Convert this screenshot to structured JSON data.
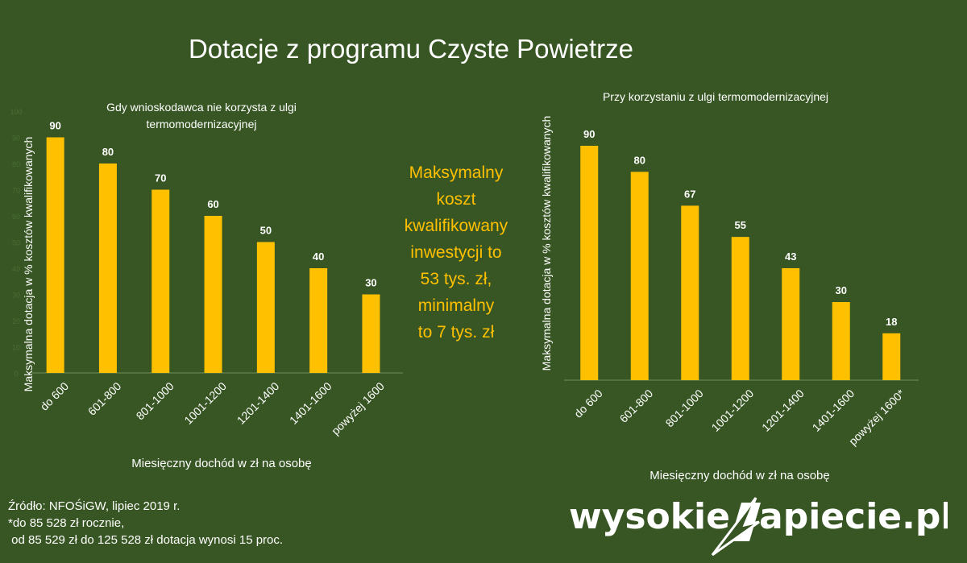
{
  "title": "Dotacje z programu Czyste Powietrze",
  "note": {
    "lines": [
      "Maksymalny",
      "koszt",
      "kwalifikowany",
      "inwestycji to",
      "53 tys. zł,",
      "minimalny",
      "to 7 tys. zł"
    ],
    "color": "#ffc000"
  },
  "source_lines": [
    "Źródło: NFOŚiGW, lipiec 2019 r.",
    "*do 85 528 zł rocznie,",
    " od 85 529 zł do 125 528 zł dotacja wynosi 15 proc."
  ],
  "logo": {
    "left_text": "wysokie",
    "right_text": "apiecie.pl",
    "icon": "lightning-bolt-icon"
  },
  "colors": {
    "background": "#375623",
    "bar": "#ffc000",
    "text": "#ffffff"
  },
  "chart_data": [
    {
      "type": "bar",
      "title_lines": [
        "Gdy wnioskodawca nie korzysta z ulgi",
        "termomodernizacyjnej"
      ],
      "categories": [
        "do 600",
        "601-800",
        "801-1000",
        "1001-1200",
        "1201-1400",
        "1401-1600",
        "powyżej 1600"
      ],
      "values": [
        90,
        80,
        70,
        60,
        50,
        40,
        30
      ],
      "ylabel": "Maksymalna dotacja w % kosztów kwalifikowanych",
      "xlabel": "Miesięczny dochód w zł na osobę",
      "ylim": [
        0,
        100
      ],
      "yticks": [
        "0",
        "10",
        "20",
        "30",
        "40",
        "50",
        "60",
        "70",
        "80",
        "90",
        "100"
      ],
      "grid": false,
      "legend": "none"
    },
    {
      "type": "bar",
      "title_lines": [
        "Przy korzystaniu z ulgi termomodernizacyjnej"
      ],
      "categories": [
        "do 600",
        "601-800",
        "801-1000",
        "1001-1200",
        "1201-1400",
        "1401-1600",
        "powyżej 1600*"
      ],
      "values": [
        90,
        80,
        67,
        55,
        43,
        30,
        18
      ],
      "ylabel": "Maksymalna dotacja w % kosztów kwalifikowanych",
      "xlabel": "Miesięczny dochód w zł na osobę",
      "ylim": [
        0,
        90
      ],
      "grid": false,
      "legend": "none"
    }
  ]
}
